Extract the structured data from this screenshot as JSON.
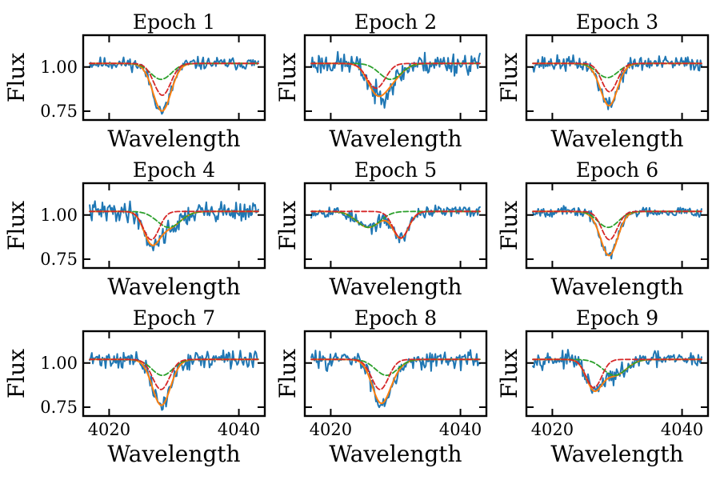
{
  "figure_title": "",
  "chart_data": {
    "type": "line",
    "layout": "3x3 grid of subplots sharing x and y axes",
    "xlabel": "Wavelength",
    "ylabel": "Flux",
    "xlim": [
      4016,
      4044
    ],
    "ylim": [
      0.7,
      1.18
    ],
    "xticks": [
      4020,
      4040
    ],
    "xtick_labels": [
      "4020",
      "4040"
    ],
    "yticks": [
      0.75,
      1.0
    ],
    "ytick_labels": [
      "0.75",
      "1.00"
    ],
    "x_range_data": [
      4017,
      4043
    ],
    "grid": false,
    "legend": false,
    "series_styles": {
      "observed": {
        "color": "#1f77b4",
        "style": "solid"
      },
      "total_model": {
        "color": "#ff7f0e",
        "style": "solid"
      },
      "component_a": {
        "color": "#d62728",
        "style": "dashed"
      },
      "component_b": {
        "color": "#2ca02c",
        "style": "dashed"
      }
    },
    "continuum": 1.02,
    "panels": [
      {
        "title": "Epoch 1",
        "component_a": {
          "center": 4028.2,
          "depth": 0.18,
          "sigma": 1.3
        },
        "component_b": {
          "center": 4028.0,
          "depth": 0.09,
          "sigma": 1.6
        },
        "noise": 0.025,
        "seed": 11
      },
      {
        "title": "Epoch 2",
        "component_a": {
          "center": 4027.0,
          "depth": 0.14,
          "sigma": 1.4
        },
        "component_b": {
          "center": 4029.2,
          "depth": 0.09,
          "sigma": 1.7
        },
        "noise": 0.045,
        "seed": 23
      },
      {
        "title": "Epoch 3",
        "component_a": {
          "center": 4028.8,
          "depth": 0.16,
          "sigma": 1.2
        },
        "component_b": {
          "center": 4028.5,
          "depth": 0.08,
          "sigma": 1.6
        },
        "noise": 0.03,
        "seed": 37
      },
      {
        "title": "Epoch 4",
        "component_a": {
          "center": 4026.5,
          "depth": 0.16,
          "sigma": 1.2
        },
        "component_b": {
          "center": 4029.2,
          "depth": 0.09,
          "sigma": 1.8
        },
        "noise": 0.04,
        "seed": 41
      },
      {
        "title": "Epoch 5",
        "component_a": {
          "center": 4030.8,
          "depth": 0.15,
          "sigma": 1.2
        },
        "component_b": {
          "center": 4025.8,
          "depth": 0.09,
          "sigma": 1.8
        },
        "noise": 0.025,
        "seed": 53
      },
      {
        "title": "Epoch 6",
        "component_a": {
          "center": 4028.8,
          "depth": 0.16,
          "sigma": 1.2
        },
        "component_b": {
          "center": 4028.6,
          "depth": 0.09,
          "sigma": 1.6
        },
        "noise": 0.02,
        "seed": 67
      },
      {
        "title": "Epoch 7",
        "component_a": {
          "center": 4028.0,
          "depth": 0.17,
          "sigma": 1.3
        },
        "component_b": {
          "center": 4028.2,
          "depth": 0.09,
          "sigma": 1.6
        },
        "noise": 0.035,
        "seed": 71
      },
      {
        "title": "Epoch 8",
        "component_a": {
          "center": 4027.6,
          "depth": 0.17,
          "sigma": 1.3
        },
        "component_b": {
          "center": 4028.6,
          "depth": 0.09,
          "sigma": 1.7
        },
        "noise": 0.035,
        "seed": 83
      },
      {
        "title": "Epoch 9",
        "component_a": {
          "center": 4026.4,
          "depth": 0.16,
          "sigma": 1.2
        },
        "component_b": {
          "center": 4029.6,
          "depth": 0.09,
          "sigma": 1.8
        },
        "noise": 0.03,
        "seed": 97
      }
    ]
  }
}
